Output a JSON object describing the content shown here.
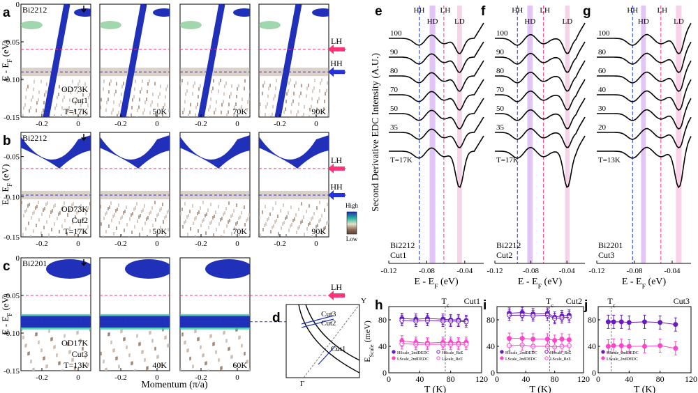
{
  "panel_letters": [
    "a",
    "b",
    "c",
    "d",
    "e",
    "f",
    "g",
    "h",
    "i",
    "j"
  ],
  "colorbar": {
    "high": "High",
    "low": "Low"
  },
  "axes": {
    "y_arpes": "E - E",
    "y_arpes_sub": "F",
    "y_arpes_unit": " (eV)",
    "x_arpes": "Momentum (π/a)",
    "y_edc": "Second Derivative EDC Intensity (A.U.)",
    "x_edc": "E - E",
    "x_edc_sub": "F",
    "x_edc_unit": " (eV)",
    "y_scale": "E",
    "y_scale_sub": "Scale",
    "y_scale_unit": " (meV)",
    "x_temp": "T (K)"
  },
  "markers": {
    "LH": "LH",
    "HH": "HH",
    "HD": "HD",
    "LD": "LD",
    "Tc": "T",
    "Tc_sub": "c"
  },
  "arpes_rows": [
    {
      "letter": "a",
      "sample": "Bi2212",
      "cut": "Cut1",
      "doping": "OD73K",
      "base_T": "T=17K",
      "temps": [
        "50K",
        "70K",
        "90K"
      ],
      "yticks": [
        "0",
        "-0.05",
        "-0.10",
        "-0.15"
      ],
      "xticks": [
        "-0.2",
        "0"
      ],
      "LH_eV": -0.06,
      "HH_eV": -0.09
    },
    {
      "letter": "b",
      "sample": "Bi2212",
      "cut": "Cut2",
      "doping": "OD73K",
      "base_T": "T=17K",
      "temps": [
        "50K",
        "70K",
        "90K"
      ],
      "yticks": [
        "-0.05",
        "-0.10",
        "-0.15"
      ],
      "xticks": [
        "-0.2",
        "0"
      ],
      "LH_eV": -0.065,
      "HH_eV": -0.098
    },
    {
      "letter": "c",
      "sample": "Bi2201",
      "cut": "Cut3",
      "doping": "OD17K",
      "base_T": "T=13K",
      "temps": [
        "40K",
        "60K"
      ],
      "yticks": [
        "0",
        "-0.05",
        "-0.10",
        "-0.15"
      ],
      "xticks": [
        "-0.2",
        "0"
      ],
      "LH_eV": -0.05,
      "HH_eV": -0.085
    }
  ],
  "bz": {
    "cut1": "Cut1",
    "cut2": "Cut2",
    "cut3": "Cut3",
    "gamma": "Γ",
    "y": "Y"
  },
  "chart_data": [
    {
      "panel": "e",
      "type": "line",
      "sample": "Bi2212",
      "cut": "Cut1",
      "x_range": [
        -0.12,
        -0.02
      ],
      "xticks": [
        -0.12,
        -0.08,
        -0.04
      ],
      "temps": [
        "100",
        "90",
        "80",
        "70",
        "50",
        "35",
        "T=17K"
      ],
      "HH": -0.088,
      "LH": -0.062,
      "HD_band": [
        -0.077,
        -0.071
      ],
      "LD_band": [
        -0.048,
        -0.043
      ]
    },
    {
      "panel": "f",
      "type": "line",
      "sample": "Bi2212",
      "cut": "Cut2",
      "x_range": [
        -0.12,
        -0.02
      ],
      "xticks": [
        -0.12,
        -0.08,
        -0.04
      ],
      "temps": [
        "100",
        "90",
        "80",
        "70",
        "50",
        "35",
        "T=17K"
      ],
      "HH": -0.095,
      "LH": -0.066,
      "HD_band": [
        -0.084,
        -0.078
      ],
      "LD_band": [
        -0.042,
        -0.037
      ]
    },
    {
      "panel": "g",
      "type": "line",
      "sample": "Bi2201",
      "cut": "Cut3",
      "x_range": [
        -0.12,
        -0.02
      ],
      "xticks": [
        -0.12,
        -0.08,
        -0.04
      ],
      "temps": [
        "100",
        "80",
        "60",
        "40",
        "30",
        "20",
        "T=13K"
      ],
      "HH": -0.082,
      "LH": -0.052,
      "HD_band": [
        -0.073,
        -0.068
      ],
      "LD_band": [
        -0.036,
        -0.03
      ]
    },
    {
      "panel": "h",
      "type": "scatter",
      "cut": "Cut1",
      "Tc": 73,
      "xlim": [
        0,
        120
      ],
      "ylim": [
        0,
        100
      ],
      "xticks": [
        0,
        40,
        80,
        120
      ],
      "yticks": [
        0,
        40,
        80
      ],
      "series": [
        {
          "name": "HScale_2ndDEDC",
          "T": [
            17,
            35,
            50,
            70,
            80,
            90,
            100
          ],
          "E": [
            82,
            81,
            82,
            81,
            80,
            80,
            79
          ],
          "err": 8
        },
        {
          "name": "HScale_ReΣ",
          "T": [
            17,
            35,
            50,
            70,
            80,
            90,
            100
          ],
          "E": [
            79,
            78,
            79,
            78,
            78,
            78,
            77
          ],
          "err": 8
        },
        {
          "name": "LScale_2ndDEDC",
          "T": [
            17,
            35,
            50,
            70,
            80,
            90,
            100
          ],
          "E": [
            48,
            46,
            45,
            46,
            46,
            45,
            46
          ],
          "err": 8
        },
        {
          "name": "LScale_ReΣ",
          "T": [
            17,
            35,
            50,
            70,
            80,
            90,
            100
          ],
          "E": [
            44,
            43,
            43,
            43,
            43,
            43,
            43
          ],
          "err": 8
        }
      ]
    },
    {
      "panel": "i",
      "type": "scatter",
      "cut": "Cut2",
      "Tc": 73,
      "xlim": [
        0,
        120
      ],
      "ylim": [
        0,
        100
      ],
      "xticks": [
        0,
        40,
        80,
        120
      ],
      "yticks": [
        0,
        40,
        80
      ],
      "series": [
        {
          "name": "HScale_2ndDEDC",
          "T": [
            17,
            35,
            50,
            70,
            80,
            90,
            100
          ],
          "E": [
            90,
            91,
            89,
            90,
            84,
            86,
            87
          ],
          "err": 8
        },
        {
          "name": "HScale_ReΣ",
          "T": [
            17,
            35,
            50,
            70,
            80,
            90,
            100
          ],
          "E": [
            87,
            87,
            86,
            87,
            82,
            83,
            84
          ],
          "err": 8
        },
        {
          "name": "LScale_2ndDEDC",
          "T": [
            17,
            35,
            50,
            70,
            80,
            90,
            100
          ],
          "E": [
            52,
            52,
            51,
            51,
            49,
            51,
            50
          ],
          "err": 8
        },
        {
          "name": "LScale_ReΣ",
          "T": [
            17,
            35,
            50,
            70,
            80,
            90,
            100
          ],
          "E": [
            41,
            42,
            40,
            40,
            39,
            40,
            41
          ],
          "err": 8
        }
      ]
    },
    {
      "panel": "j",
      "type": "scatter",
      "cut": "Cut3",
      "Tc": 17,
      "xlim": [
        0,
        120
      ],
      "ylim": [
        0,
        100
      ],
      "xticks": [
        0,
        40,
        80,
        120
      ],
      "yticks": [
        0,
        40,
        80
      ],
      "series": [
        {
          "name": "HScale_2ndDEDC",
          "T": [
            13,
            20,
            30,
            40,
            60,
            80,
            100
          ],
          "E": [
            77,
            77,
            77,
            76,
            77,
            76,
            73
          ],
          "err": 10
        },
        {
          "name": "LScale_2ndDEDC",
          "T": [
            13,
            20,
            30,
            40,
            60,
            80,
            100
          ],
          "E": [
            40,
            41,
            41,
            40,
            40,
            41,
            37
          ],
          "err": 10
        }
      ]
    }
  ],
  "colors": {
    "HH": "#2233dd",
    "LH": "#ff3377",
    "HD": "#d9b8f2",
    "LD": "#f7cde3",
    "band": "#2030b8",
    "H": "#6a1bbf",
    "L": "#ff44cc"
  }
}
